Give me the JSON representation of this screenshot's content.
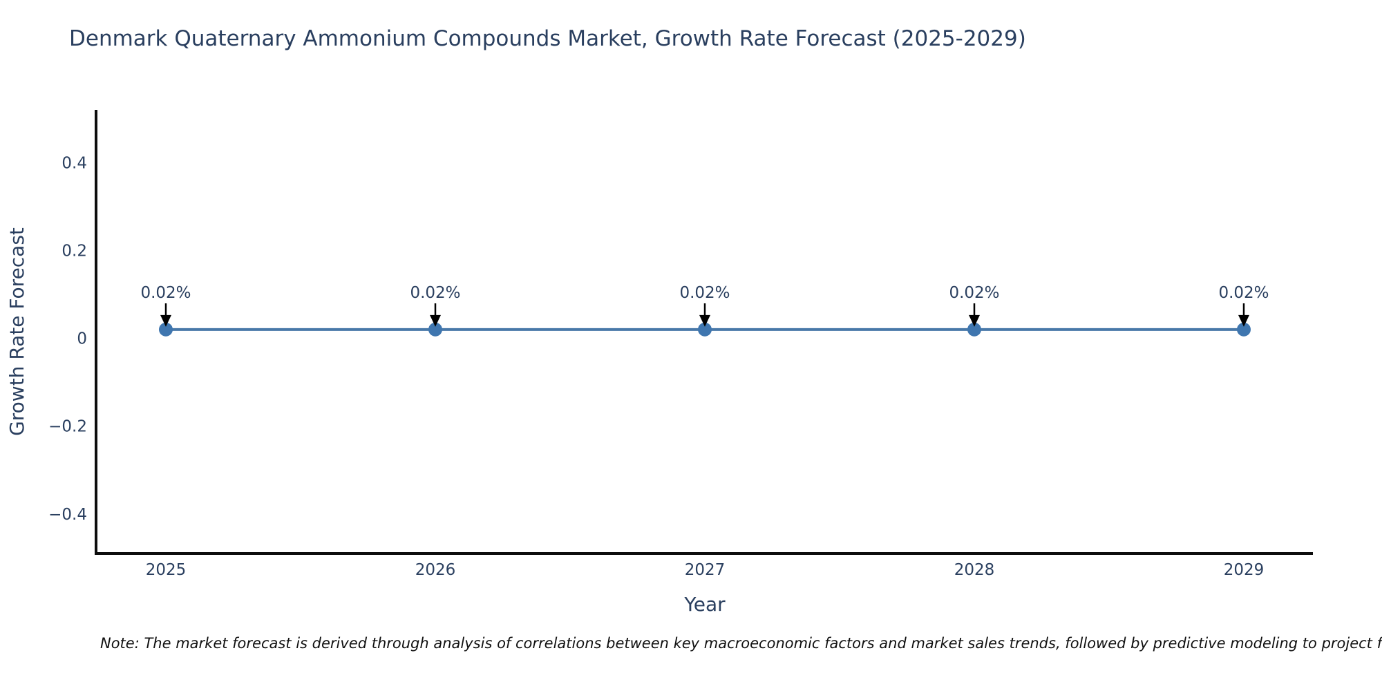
{
  "page": {
    "background": "#ffffff"
  },
  "chart_data": {
    "type": "line",
    "title": "Denmark Quaternary Ammonium Compounds Market, Growth Rate Forecast (2025-2029)",
    "xlabel": "Year",
    "ylabel": "Growth Rate Forecast",
    "x": [
      2025,
      2026,
      2027,
      2028,
      2029
    ],
    "series": [
      {
        "name": "Growth Rate Forecast",
        "values": [
          0.02,
          0.02,
          0.02,
          0.02,
          0.02
        ]
      }
    ],
    "point_labels": [
      "0.02%",
      "0.02%",
      "0.02%",
      "0.02%",
      "0.02%"
    ],
    "y_ticks": [
      0.4,
      0.2,
      0,
      -0.2,
      -0.4
    ],
    "ylim": [
      -0.49,
      0.52
    ],
    "grid": false,
    "legend_visible": false,
    "colors": {
      "line": "#4878a8",
      "marker": "#3f76af",
      "axis": "#0d0d0d",
      "text": "#2a3f5f",
      "annotation_text": "#2a3f5f",
      "annotation_arrow": "#000000"
    }
  },
  "note": {
    "text": "Note: The market forecast is derived through analysis of correlations between key macroeconomic factors and market sales trends, followed by predictive modeling to project future sales"
  }
}
